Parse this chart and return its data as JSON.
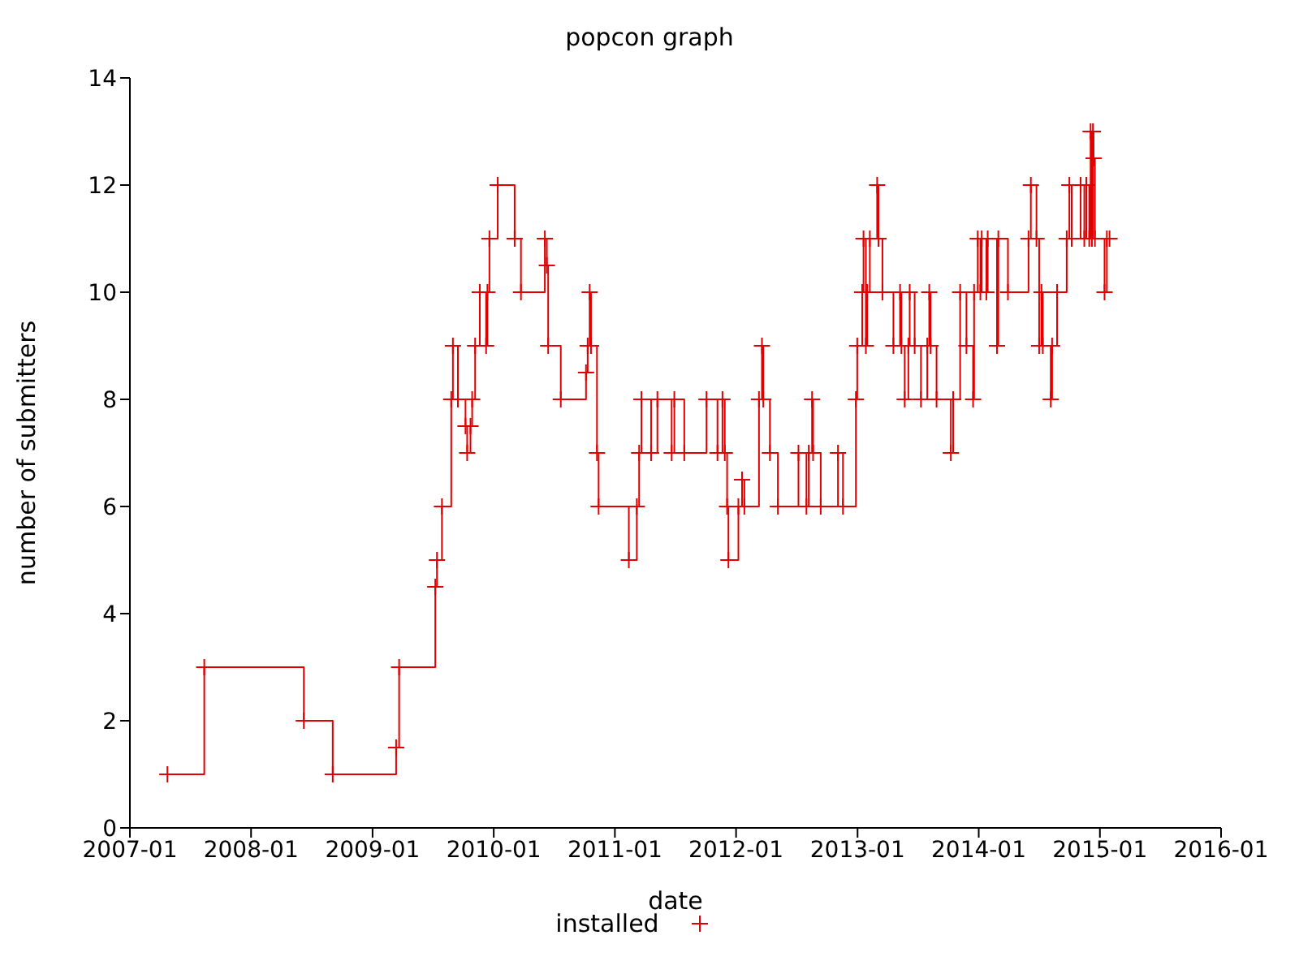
{
  "chart_data": {
    "type": "step",
    "title": "popcon graph",
    "xlabel": "date",
    "ylabel": "number of submitters",
    "xlim": [
      "2007-01",
      "2016-01"
    ],
    "xticks": [
      "2007-01",
      "2008-01",
      "2009-01",
      "2010-01",
      "2011-01",
      "2012-01",
      "2013-01",
      "2014-01",
      "2015-01",
      "2016-01"
    ],
    "ylim": [
      0,
      14
    ],
    "yticks": [
      0,
      2,
      4,
      6,
      8,
      10,
      12,
      14
    ],
    "grid": false,
    "legend": "bottom",
    "marker": "cross",
    "line_style": "solid",
    "series": [
      {
        "name": "installed",
        "color": "#e00000",
        "x": [
          "2007-04-24",
          "2007-08-13",
          "2008-06-08",
          "2008-09-03",
          "2009-03-13",
          "2009-03-22",
          "2009-07-09",
          "2009-07-14",
          "2009-07-29",
          "2009-08-26",
          "2009-08-31",
          "2009-09-15",
          "2009-10-08",
          "2009-10-13",
          "2009-10-23",
          "2009-10-28",
          "2009-11-06",
          "2009-11-20",
          "2009-12-09",
          "2009-12-13",
          "2009-12-19",
          "2010-01-13",
          "2010-03-05",
          "2010-03-24",
          "2010-06-04",
          "2010-06-10",
          "2010-06-14",
          "2010-07-22",
          "2010-10-06",
          "2010-10-11",
          "2010-10-17",
          "2010-10-21",
          "2010-11-08",
          "2010-11-13",
          "2011-02-12",
          "2011-03-08",
          "2011-03-15",
          "2011-03-22",
          "2011-04-20",
          "2011-05-09",
          "2011-06-21",
          "2011-06-29",
          "2011-07-29",
          "2011-10-04",
          "2011-11-06",
          "2011-11-21",
          "2011-11-28",
          "2011-12-05",
          "2011-12-09",
          "2012-01-08",
          "2012-01-19",
          "2012-01-26",
          "2012-03-10",
          "2012-03-19",
          "2012-03-23",
          "2012-04-12",
          "2012-05-06",
          "2012-07-07",
          "2012-07-31",
          "2012-08-07",
          "2012-08-17",
          "2012-08-20",
          "2012-09-12",
          "2012-11-03",
          "2012-11-18",
          "2012-12-27",
          "2012-12-31",
          "2013-01-15",
          "2013-01-19",
          "2013-01-26",
          "2013-01-30",
          "2013-02-07",
          "2013-03-01",
          "2013-03-05",
          "2013-03-17",
          "2013-04-19",
          "2013-05-09",
          "2013-05-13",
          "2013-05-23",
          "2013-06-03",
          "2013-06-07",
          "2013-06-22",
          "2013-07-11",
          "2013-07-30",
          "2013-08-05",
          "2013-08-09",
          "2013-08-27",
          "2013-10-09",
          "2013-10-16",
          "2013-11-06",
          "2013-11-25",
          "2013-12-15",
          "2013-12-18",
          "2013-12-29",
          "2014-01-06",
          "2014-01-10",
          "2014-01-24",
          "2014-01-28",
          "2014-02-25",
          "2014-03-01",
          "2014-03-30",
          "2014-05-31",
          "2014-06-07",
          "2014-06-24",
          "2014-07-02",
          "2014-07-09",
          "2014-07-13",
          "2014-08-06",
          "2014-08-10",
          "2014-08-25",
          "2014-09-23",
          "2014-10-01",
          "2014-10-08",
          "2014-11-04",
          "2014-11-15",
          "2014-11-21",
          "2014-11-30",
          "2014-12-04",
          "2014-12-08",
          "2014-12-11",
          "2014-12-13",
          "2014-12-17",
          "2015-01-15",
          "2015-01-22",
          "2015-01-30"
        ],
        "values": [
          1,
          3,
          2,
          1,
          1.5,
          3,
          4.5,
          5,
          6,
          8,
          9,
          8,
          7.5,
          7,
          7.5,
          8,
          9,
          10,
          9,
          10,
          11,
          12,
          11,
          10,
          11,
          10.5,
          9,
          8,
          8.5,
          9,
          10,
          9,
          7,
          6,
          5,
          6,
          7,
          8,
          7,
          8,
          7,
          8,
          7,
          8,
          7,
          8,
          7,
          6,
          5,
          6,
          6.5,
          6,
          8,
          9,
          8,
          7,
          6,
          7,
          6,
          7,
          8,
          7,
          6,
          7,
          6,
          8,
          9,
          10,
          11,
          9,
          10,
          11,
          12,
          11,
          10,
          9,
          10,
          9,
          8,
          9,
          10,
          9,
          8,
          9,
          10,
          9,
          8,
          7,
          8,
          10,
          9,
          8,
          10,
          11,
          10,
          11,
          10,
          11,
          9,
          11,
          10,
          11,
          12,
          11,
          9,
          10,
          9,
          8,
          9,
          10,
          11,
          12,
          11,
          12,
          11,
          12,
          11,
          13,
          11,
          13,
          12.5,
          11,
          10,
          11,
          11
        ]
      }
    ]
  }
}
